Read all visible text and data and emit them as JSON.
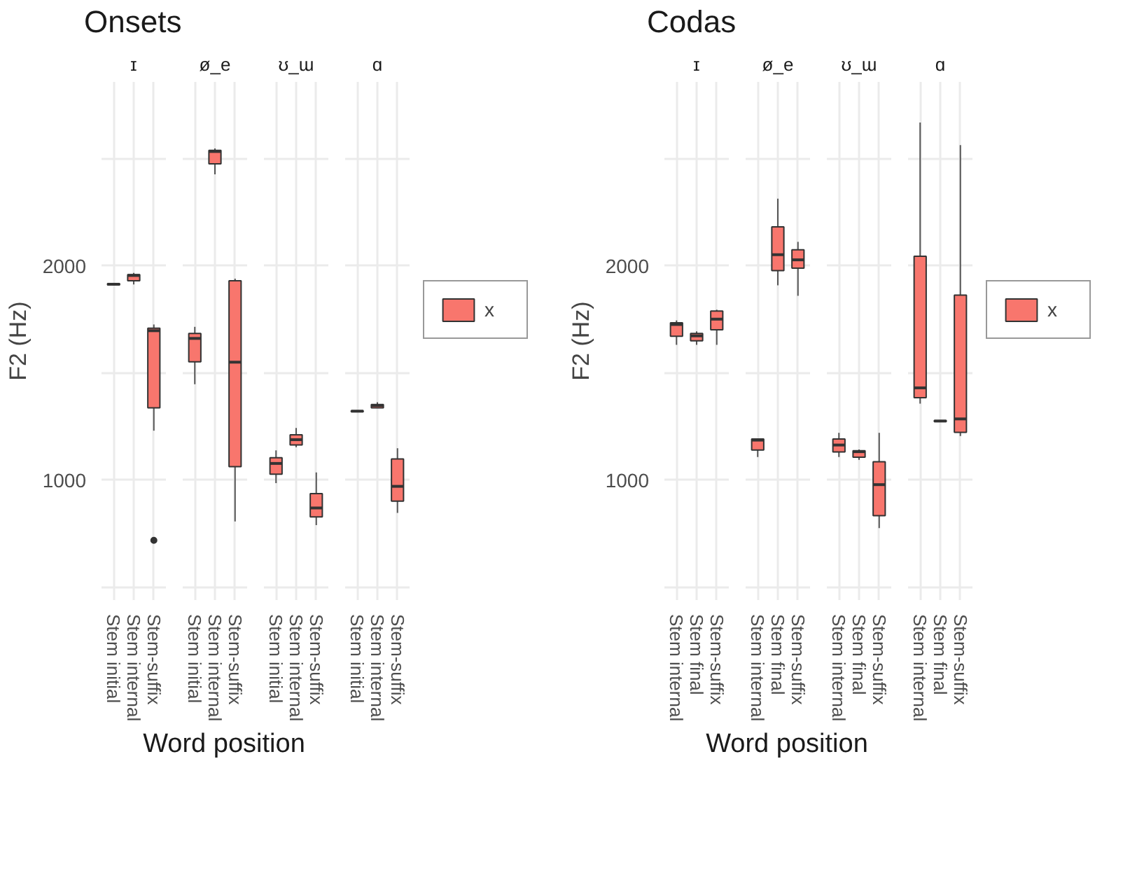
{
  "chart_data": [
    {
      "type": "box",
      "title": "Onsets",
      "subtitle": "ɪ",
      "xlabel": "Word position",
      "ylabel": "F2 (Hz)",
      "categories": [
        "Stem initial",
        "Stem internal",
        "Stem-suffix"
      ],
      "ylim": [
        440,
        2860
      ],
      "yticks": [
        {
          "value": 500,
          "label": null
        },
        1000,
        {
          "value": 1500,
          "label": null
        },
        2000,
        {
          "value": 2500,
          "label": null
        }
      ],
      "grid": true,
      "series": [
        {
          "color": "#f8766d",
          "boxes": [
            {
              "low": 1910,
              "q1": 1912,
              "median": 1915,
              "q3": 1918,
              "high": 1920
            },
            {
              "low": 1914,
              "q1": 1931,
              "median": 1956,
              "q3": 1960,
              "high": 1968
            },
            {
              "low": 1231,
              "q1": 1338,
              "median": 1698,
              "q3": 1710,
              "high": 1727,
              "outliers": [
                719
              ]
            }
          ]
        }
      ]
    },
    {
      "type": "box",
      "subtitle": "ø_e",
      "categories": [
        "Stem initial",
        "Stem internal",
        "Stem-suffix"
      ],
      "ylim": [
        440,
        2860
      ],
      "yticks": [
        {
          "value": 500,
          "label": null
        },
        1000,
        {
          "value": 1500,
          "label": null
        },
        2000,
        {
          "value": 2500,
          "label": null
        }
      ],
      "grid": true,
      "tick_labels": "x",
      "series": [
        {
          "color": "#f8766d",
          "boxes": [
            {
              "low": 1448,
              "q1": 1553,
              "median": 1662,
              "q3": 1685,
              "high": 1716
            },
            {
              "low": 2428,
              "q1": 2477,
              "median": 2535,
              "q3": 2540,
              "high": 2549
            },
            {
              "low": 807,
              "q1": 1063,
              "median": 1551,
              "q3": 1931,
              "high": 1941
            }
          ]
        }
      ]
    },
    {
      "type": "box",
      "subtitle": "ʊ_ɯ",
      "categories": [
        "Stem initial",
        "Stem internal",
        "Stem-suffix"
      ],
      "ylim": [
        440,
        2860
      ],
      "yticks": [
        {
          "value": 500,
          "label": null
        },
        1000,
        {
          "value": 1500,
          "label": null
        },
        2000,
        {
          "value": 2500,
          "label": null
        }
      ],
      "grid": true,
      "tick_labels": "x",
      "series": [
        {
          "color": "#f8766d",
          "boxes": [
            {
              "low": 986,
              "q1": 1028,
              "median": 1078,
              "q3": 1105,
              "high": 1139
            },
            {
              "low": 1154,
              "q1": 1164,
              "median": 1189,
              "q3": 1212,
              "high": 1244
            },
            {
              "low": 790,
              "q1": 828,
              "median": 870,
              "q3": 937,
              "high": 1036
            }
          ]
        }
      ]
    },
    {
      "type": "box",
      "subtitle": "ɑ",
      "categories": [
        "Stem initial",
        "Stem internal",
        "Stem-suffix"
      ],
      "ylim": [
        440,
        2860
      ],
      "yticks": [
        {
          "value": 500,
          "label": null
        },
        1000,
        {
          "value": 1500,
          "label": null
        },
        2000,
        {
          "value": 2500,
          "label": null
        }
      ],
      "grid": true,
      "tick_labels": "x",
      "legend": "right",
      "series": [
        {
          "name": "x",
          "color": "#f8766d",
          "boxes": [
            {
              "low": 1318,
              "q1": 1320,
              "median": 1322,
              "q3": 1324,
              "high": 1326
            },
            {
              "low": 1336,
              "q1": 1338,
              "median": 1349,
              "q3": 1353,
              "high": 1364
            },
            {
              "low": 847,
              "q1": 902,
              "median": 971,
              "q3": 1099,
              "high": 1149
            }
          ]
        }
      ]
    },
    {
      "type": "box",
      "title": "Codas",
      "subtitle": "ɪ",
      "xlabel": "Word position",
      "ylabel": "F2 (Hz)",
      "categories": [
        "Stem internal",
        "Stem final",
        "Stem-suffix"
      ],
      "ylim": [
        440,
        2860
      ],
      "yticks": [
        {
          "value": 500,
          "label": null
        },
        1000,
        {
          "value": 1500,
          "label": null
        },
        2000,
        {
          "value": 2500,
          "label": null
        }
      ],
      "grid": true,
      "series": [
        {
          "color": "#f8766d",
          "boxes": [
            {
              "low": 1632,
              "q1": 1672,
              "median": 1727,
              "q3": 1735,
              "high": 1746
            },
            {
              "low": 1632,
              "q1": 1651,
              "median": 1674,
              "q3": 1685,
              "high": 1695
            },
            {
              "low": 1632,
              "q1": 1702,
              "median": 1752,
              "q3": 1790,
              "high": 1796
            }
          ]
        }
      ]
    },
    {
      "type": "box",
      "subtitle": "ø_e",
      "categories": [
        "Stem internal",
        "Stem final",
        "Stem-suffix"
      ],
      "ylim": [
        440,
        2860
      ],
      "yticks": [
        {
          "value": 500,
          "label": null
        },
        1000,
        {
          "value": 1500,
          "label": null
        },
        2000,
        {
          "value": 2500,
          "label": null
        }
      ],
      "grid": true,
      "tick_labels": "x",
      "series": [
        {
          "color": "#f8766d",
          "boxes": [
            {
              "low": 1108,
              "q1": 1141,
              "median": 1187,
              "q3": 1192,
              "high": 1195
            },
            {
              "low": 1910,
              "q1": 1979,
              "median": 2053,
              "q3": 2183,
              "high": 2315
            },
            {
              "low": 1861,
              "q1": 1990,
              "median": 2029,
              "q3": 2076,
              "high": 2113
            }
          ]
        }
      ]
    },
    {
      "type": "box",
      "subtitle": "ʊ_ɯ",
      "categories": [
        "Stem internal",
        "Stem final",
        "Stem-suffix"
      ],
      "ylim": [
        440,
        2860
      ],
      "yticks": [
        {
          "value": 500,
          "label": null
        },
        1000,
        {
          "value": 1500,
          "label": null
        },
        2000,
        {
          "value": 2500,
          "label": null
        }
      ],
      "grid": true,
      "tick_labels": "x",
      "series": [
        {
          "color": "#f8766d",
          "boxes": [
            {
              "low": 1108,
              "q1": 1132,
              "median": 1164,
              "q3": 1192,
              "high": 1221
            },
            {
              "low": 1095,
              "q1": 1107,
              "median": 1133,
              "q3": 1137,
              "high": 1143
            },
            {
              "low": 776,
              "q1": 834,
              "median": 979,
              "q3": 1086,
              "high": 1221
            }
          ]
        }
      ]
    },
    {
      "type": "box",
      "subtitle": "ɑ",
      "categories": [
        "Stem internal",
        "Stem final",
        "Stem-suffix"
      ],
      "ylim": [
        440,
        2860
      ],
      "yticks": [
        {
          "value": 500,
          "label": null
        },
        1000,
        {
          "value": 1500,
          "label": null
        },
        2000,
        {
          "value": 2500,
          "label": null
        }
      ],
      "grid": true,
      "tick_labels": "x",
      "legend": "right",
      "series": [
        {
          "name": "x",
          "color": "#f8766d",
          "boxes": [
            {
              "low": 1357,
              "q1": 1385,
              "median": 1431,
              "q3": 2046,
              "high": 2670
            },
            {
              "low": 1272,
              "q1": 1274,
              "median": 1276,
              "q3": 1278,
              "high": 1280
            },
            {
              "low": 1206,
              "q1": 1223,
              "median": 1286,
              "q3": 1864,
              "high": 2565
            }
          ]
        }
      ]
    }
  ]
}
